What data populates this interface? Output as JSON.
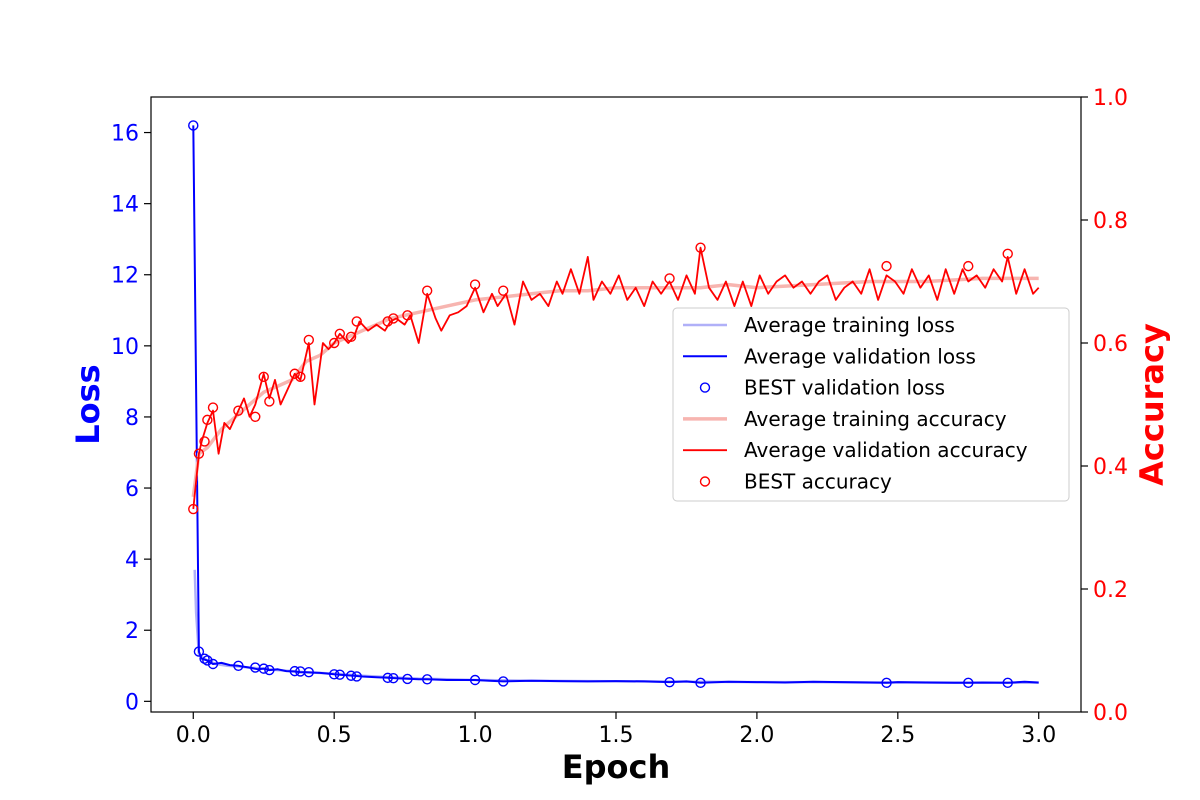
{
  "chart_data": {
    "type": "line",
    "xlabel": "Epoch",
    "ylabel_left": "Loss",
    "ylabel_right": "Accuracy",
    "xlim": [
      -0.15,
      3.15
    ],
    "ylim_left": [
      -0.3,
      17.0
    ],
    "ylim_right": [
      0.0,
      1.0
    ],
    "x_ticks": [
      0.0,
      0.5,
      1.0,
      1.5,
      2.0,
      2.5,
      3.0
    ],
    "x_tick_labels": [
      "0.0",
      "0.5",
      "1.0",
      "1.5",
      "2.0",
      "2.5",
      "3.0"
    ],
    "y_left_ticks": [
      0,
      2,
      4,
      6,
      8,
      10,
      12,
      14,
      16
    ],
    "y_left_tick_labels": [
      "0",
      "2",
      "4",
      "6",
      "8",
      "10",
      "12",
      "14",
      "16"
    ],
    "y_right_ticks": [
      0.0,
      0.2,
      0.4,
      0.6,
      0.8,
      1.0
    ],
    "y_right_tick_labels": [
      "0.0",
      "0.2",
      "0.4",
      "0.6",
      "0.8",
      "1.0"
    ],
    "legend_position": "center-right",
    "grid": false,
    "colors": {
      "loss_axis": "#0000ff",
      "accuracy_axis": "#ff0000",
      "training_loss": "#b0b0f8",
      "validation_loss": "#0000ff",
      "training_accuracy": "#f7b5b0",
      "validation_accuracy": "#ff0000"
    },
    "series": [
      {
        "name": "Average training loss",
        "axis": "left",
        "style": "line",
        "x": [
          0.005,
          0.01,
          0.02,
          0.05,
          0.08,
          0.12,
          0.16,
          0.2,
          0.25,
          0.3,
          0.35,
          0.4,
          0.5,
          0.6,
          0.7,
          0.8,
          0.9,
          1.0,
          1.2,
          1.4,
          1.6,
          1.8,
          2.0,
          2.2,
          2.4,
          2.6,
          2.8,
          3.0
        ],
        "values": [
          3.7,
          2.5,
          1.3,
          1.15,
          1.05,
          1.0,
          0.98,
          0.95,
          0.92,
          0.88,
          0.85,
          0.82,
          0.78,
          0.72,
          0.68,
          0.64,
          0.62,
          0.6,
          0.58,
          0.57,
          0.56,
          0.55,
          0.54,
          0.54,
          0.53,
          0.53,
          0.52,
          0.52
        ]
      },
      {
        "name": "Average validation loss",
        "axis": "left",
        "style": "line",
        "x": [
          0.0,
          0.02,
          0.03,
          0.05,
          0.07,
          0.1,
          0.13,
          0.16,
          0.2,
          0.23,
          0.25,
          0.27,
          0.3,
          0.33,
          0.36,
          0.38,
          0.4,
          0.45,
          0.5,
          0.52,
          0.55,
          0.57,
          0.6,
          0.65,
          0.7,
          0.72,
          0.75,
          0.8,
          0.83,
          0.9,
          1.0,
          1.05,
          1.1,
          1.2,
          1.3,
          1.4,
          1.5,
          1.6,
          1.69,
          1.75,
          1.8,
          1.9,
          2.0,
          2.1,
          2.2,
          2.3,
          2.4,
          2.46,
          2.5,
          2.6,
          2.7,
          2.75,
          2.8,
          2.89,
          2.95,
          3.0
        ],
        "values": [
          16.2,
          1.4,
          1.2,
          1.15,
          1.05,
          1.08,
          1.02,
          1.0,
          0.95,
          0.9,
          0.92,
          0.88,
          0.9,
          0.85,
          0.84,
          0.82,
          0.82,
          0.8,
          0.76,
          0.75,
          0.73,
          0.72,
          0.7,
          0.68,
          0.66,
          0.65,
          0.64,
          0.62,
          0.62,
          0.6,
          0.6,
          0.58,
          0.56,
          0.58,
          0.57,
          0.56,
          0.57,
          0.56,
          0.54,
          0.56,
          0.52,
          0.55,
          0.54,
          0.53,
          0.55,
          0.54,
          0.53,
          0.52,
          0.54,
          0.53,
          0.52,
          0.52,
          0.53,
          0.52,
          0.55,
          0.53
        ]
      },
      {
        "name": "BEST validation loss",
        "axis": "left",
        "style": "marker",
        "x": [
          0.0,
          0.02,
          0.04,
          0.05,
          0.07,
          0.16,
          0.22,
          0.25,
          0.27,
          0.36,
          0.38,
          0.41,
          0.5,
          0.52,
          0.56,
          0.58,
          0.69,
          0.71,
          0.76,
          0.83,
          1.0,
          1.1,
          1.69,
          1.8,
          2.46,
          2.75,
          2.89
        ],
        "values": [
          16.2,
          1.4,
          1.2,
          1.15,
          1.05,
          1.0,
          0.95,
          0.92,
          0.88,
          0.85,
          0.84,
          0.82,
          0.76,
          0.75,
          0.72,
          0.7,
          0.66,
          0.65,
          0.63,
          0.62,
          0.6,
          0.56,
          0.54,
          0.52,
          0.52,
          0.52,
          0.52
        ]
      },
      {
        "name": "Average training accuracy",
        "axis": "right",
        "style": "line",
        "x": [
          0.0,
          0.02,
          0.05,
          0.1,
          0.15,
          0.2,
          0.25,
          0.3,
          0.35,
          0.4,
          0.45,
          0.5,
          0.55,
          0.6,
          0.65,
          0.7,
          0.8,
          0.9,
          1.0,
          1.1,
          1.2,
          1.3,
          1.4,
          1.5,
          1.6,
          1.7,
          1.8,
          1.9,
          2.0,
          2.2,
          2.4,
          2.6,
          2.8,
          3.0
        ],
        "values": [
          0.35,
          0.42,
          0.43,
          0.46,
          0.48,
          0.5,
          0.52,
          0.53,
          0.54,
          0.57,
          0.58,
          0.6,
          0.61,
          0.62,
          0.63,
          0.64,
          0.65,
          0.66,
          0.67,
          0.675,
          0.68,
          0.685,
          0.685,
          0.69,
          0.69,
          0.69,
          0.69,
          0.695,
          0.69,
          0.695,
          0.7,
          0.7,
          0.705,
          0.705
        ]
      },
      {
        "name": "Average validation accuracy",
        "axis": "right",
        "style": "line",
        "x": [
          0.0,
          0.02,
          0.03,
          0.05,
          0.07,
          0.09,
          0.11,
          0.13,
          0.16,
          0.18,
          0.2,
          0.22,
          0.25,
          0.27,
          0.29,
          0.31,
          0.33,
          0.36,
          0.38,
          0.41,
          0.43,
          0.46,
          0.48,
          0.5,
          0.52,
          0.55,
          0.57,
          0.59,
          0.62,
          0.65,
          0.68,
          0.7,
          0.72,
          0.75,
          0.77,
          0.8,
          0.83,
          0.86,
          0.88,
          0.91,
          0.94,
          0.97,
          1.0,
          1.03,
          1.06,
          1.08,
          1.11,
          1.14,
          1.17,
          1.2,
          1.23,
          1.26,
          1.29,
          1.31,
          1.34,
          1.37,
          1.4,
          1.42,
          1.45,
          1.48,
          1.51,
          1.54,
          1.57,
          1.6,
          1.63,
          1.66,
          1.69,
          1.72,
          1.75,
          1.78,
          1.8,
          1.83,
          1.86,
          1.89,
          1.92,
          1.95,
          1.98,
          2.01,
          2.04,
          2.07,
          2.1,
          2.13,
          2.16,
          2.19,
          2.22,
          2.25,
          2.28,
          2.31,
          2.34,
          2.37,
          2.4,
          2.43,
          2.46,
          2.49,
          2.52,
          2.55,
          2.58,
          2.61,
          2.64,
          2.67,
          2.7,
          2.73,
          2.75,
          2.78,
          2.81,
          2.84,
          2.87,
          2.89,
          2.92,
          2.95,
          2.98,
          3.0
        ],
        "values": [
          0.33,
          0.42,
          0.44,
          0.47,
          0.49,
          0.42,
          0.47,
          0.46,
          0.49,
          0.51,
          0.48,
          0.5,
          0.55,
          0.51,
          0.54,
          0.5,
          0.52,
          0.55,
          0.54,
          0.6,
          0.5,
          0.6,
          0.59,
          0.6,
          0.615,
          0.6,
          0.61,
          0.635,
          0.62,
          0.63,
          0.62,
          0.635,
          0.64,
          0.63,
          0.645,
          0.6,
          0.68,
          0.64,
          0.62,
          0.645,
          0.65,
          0.66,
          0.69,
          0.65,
          0.68,
          0.66,
          0.68,
          0.63,
          0.7,
          0.67,
          0.68,
          0.66,
          0.7,
          0.68,
          0.72,
          0.68,
          0.74,
          0.67,
          0.7,
          0.68,
          0.71,
          0.67,
          0.69,
          0.66,
          0.7,
          0.68,
          0.7,
          0.67,
          0.71,
          0.68,
          0.755,
          0.69,
          0.67,
          0.7,
          0.66,
          0.7,
          0.66,
          0.71,
          0.68,
          0.7,
          0.71,
          0.69,
          0.7,
          0.68,
          0.7,
          0.71,
          0.67,
          0.69,
          0.7,
          0.68,
          0.72,
          0.67,
          0.71,
          0.7,
          0.68,
          0.72,
          0.69,
          0.71,
          0.67,
          0.72,
          0.68,
          0.72,
          0.7,
          0.71,
          0.69,
          0.72,
          0.7,
          0.74,
          0.68,
          0.72,
          0.68,
          0.69
        ]
      },
      {
        "name": "BEST accuracy",
        "axis": "right",
        "style": "marker",
        "x": [
          0.0,
          0.02,
          0.04,
          0.05,
          0.07,
          0.16,
          0.22,
          0.25,
          0.27,
          0.36,
          0.38,
          0.41,
          0.5,
          0.52,
          0.56,
          0.58,
          0.69,
          0.71,
          0.76,
          0.83,
          1.0,
          1.1,
          1.69,
          1.8,
          2.46,
          2.75,
          2.89
        ],
        "values": [
          0.33,
          0.42,
          0.44,
          0.475,
          0.495,
          0.49,
          0.48,
          0.545,
          0.505,
          0.55,
          0.545,
          0.605,
          0.6,
          0.615,
          0.61,
          0.635,
          0.635,
          0.64,
          0.645,
          0.685,
          0.695,
          0.685,
          0.705,
          0.755,
          0.725,
          0.725,
          0.745
        ]
      }
    ]
  }
}
